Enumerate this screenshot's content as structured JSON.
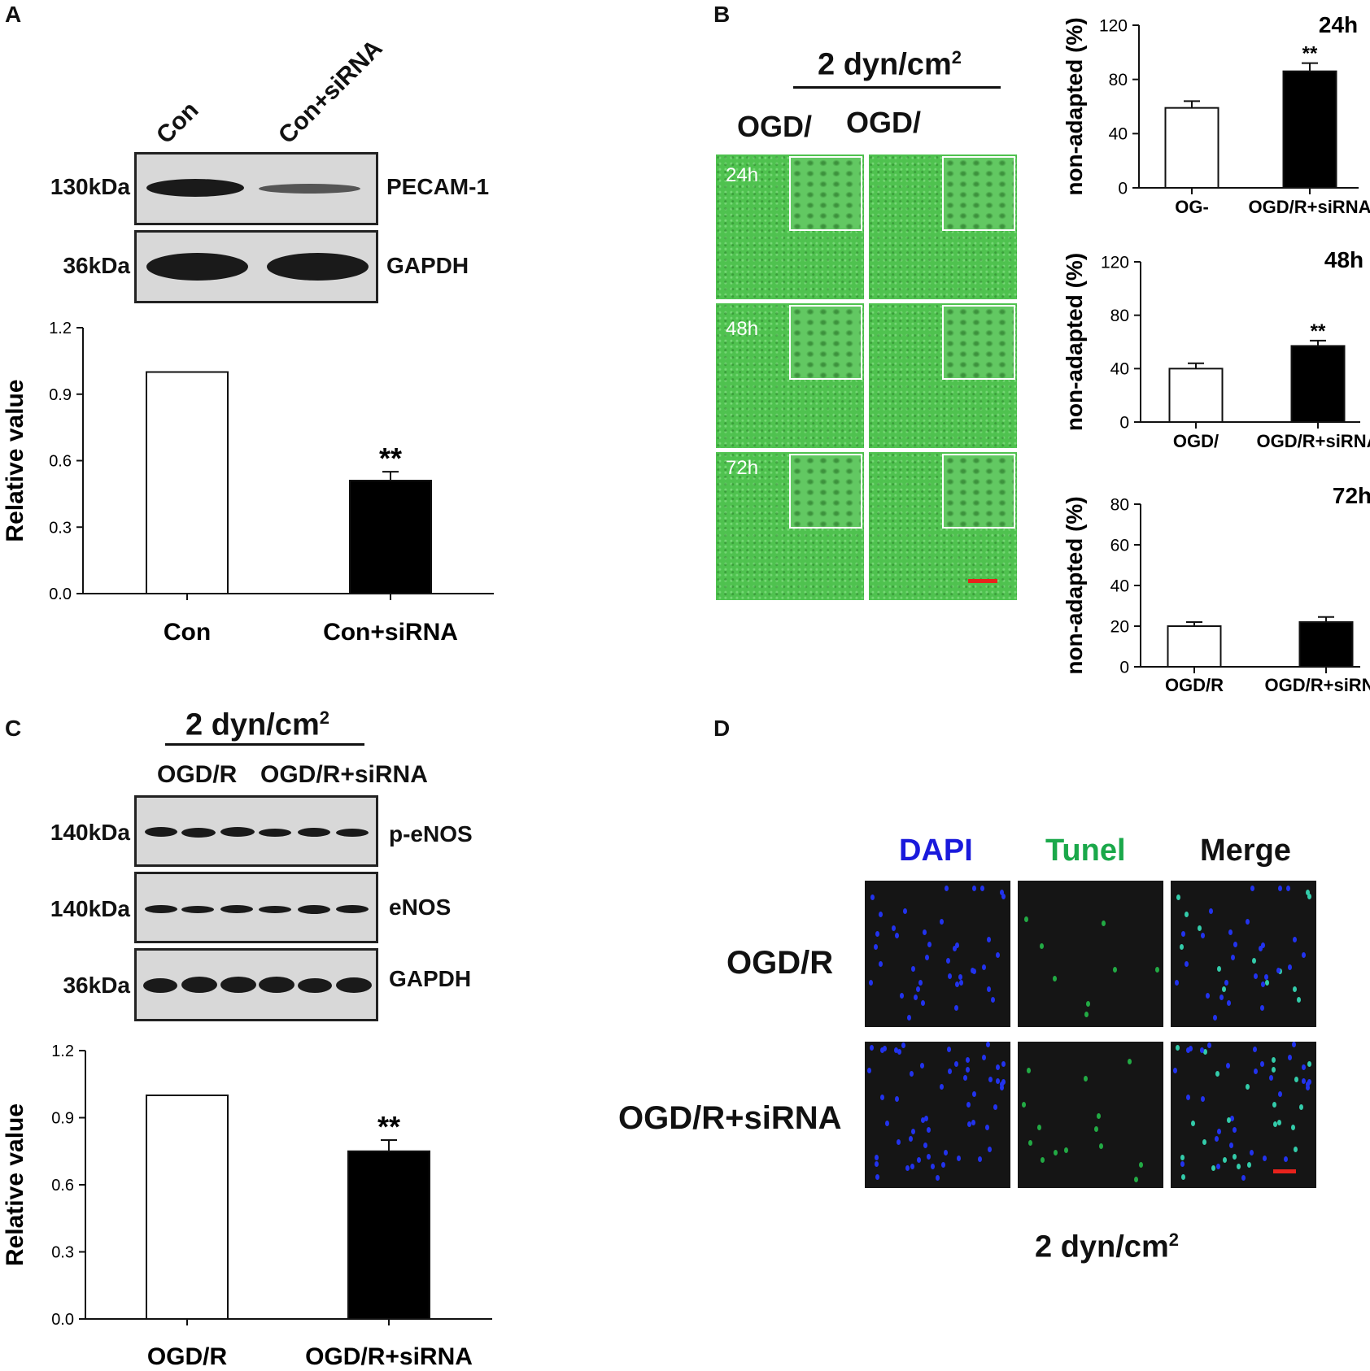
{
  "panel_A": {
    "letter": "A",
    "lanes": [
      "Con",
      "Con+siRNA"
    ],
    "blots": [
      {
        "mw": "130kDa",
        "protein": "PECAM-1"
      },
      {
        "mw": "36kDa",
        "protein": "GAPDH"
      }
    ]
  },
  "panel_B": {
    "letter": "B",
    "shear": "2 dyn/cm",
    "shear_sup": "2",
    "col_labels": [
      "OGD/",
      "OGD/"
    ],
    "time_labels": [
      "24h",
      "48h",
      "72h"
    ]
  },
  "panel_C": {
    "letter": "C",
    "shear": "2 dyn/cm",
    "shear_sup": "2",
    "groups": [
      "OGD/R",
      "OGD/R+siRNA"
    ],
    "blots": [
      {
        "mw": "140kDa",
        "protein": "p-eNOS"
      },
      {
        "mw": "140kDa",
        "protein": "eNOS"
      },
      {
        "mw": "36kDa",
        "protein": "GAPDH"
      }
    ]
  },
  "panel_D": {
    "letter": "D",
    "channels": [
      "DAPI",
      "Tunel",
      "Merge"
    ],
    "channel_colors": [
      "#1a1adc",
      "#1aa84a",
      "#111111"
    ],
    "rows": [
      "OGD/R",
      "OGD/R+siRNA"
    ],
    "shear": "2 dyn/cm",
    "shear_sup": "2"
  },
  "colors": {
    "scale_bar": "#e8221c",
    "micro_green": "#4fc24f"
  },
  "chart_data": [
    {
      "id": "A",
      "type": "bar",
      "categories": [
        "Con",
        "Con+siRNA"
      ],
      "values": [
        1.0,
        0.51
      ],
      "errors": [
        0,
        0.04
      ],
      "fills": [
        "white",
        "black"
      ],
      "significance": [
        "",
        "**"
      ],
      "ylabel": "Relative value",
      "ylim": [
        0,
        1.2
      ],
      "yticks": [
        "0.0",
        "0.3",
        "0.6",
        "0.9",
        "1.2"
      ]
    },
    {
      "id": "B24",
      "type": "bar",
      "categories": [
        "OG-",
        "OGD/R+siRNA"
      ],
      "values": [
        59,
        86
      ],
      "errors": [
        5,
        6
      ],
      "fills": [
        "white",
        "black"
      ],
      "significance": [
        "",
        "**"
      ],
      "ylabel": "non-adapted (%)",
      "title": "24h",
      "ylim": [
        0,
        120
      ],
      "yticks": [
        "0",
        "40",
        "80",
        "120"
      ]
    },
    {
      "id": "B48",
      "type": "bar",
      "categories": [
        "OGD/",
        "OGD/R+siRNA"
      ],
      "values": [
        40,
        57
      ],
      "errors": [
        4,
        4
      ],
      "fills": [
        "white",
        "black"
      ],
      "significance": [
        "",
        "**"
      ],
      "ylabel": "non-adapted (%)",
      "title": "48h",
      "ylim": [
        0,
        120
      ],
      "yticks": [
        "0",
        "40",
        "80",
        "120"
      ]
    },
    {
      "id": "B72",
      "type": "bar",
      "categories": [
        "OGD/R",
        "OGD/R+siRNA"
      ],
      "values": [
        20,
        22
      ],
      "errors": [
        2,
        2.5
      ],
      "fills": [
        "white",
        "black"
      ],
      "significance": [
        "",
        ""
      ],
      "ylabel": "non-adapted (%)",
      "title": "72h",
      "ylim": [
        0,
        80
      ],
      "yticks": [
        "0",
        "20",
        "40",
        "60",
        "80"
      ]
    },
    {
      "id": "C",
      "type": "bar",
      "categories": [
        "OGD/R",
        "OGD/R+siRNA"
      ],
      "values": [
        1.0,
        0.75
      ],
      "errors": [
        0,
        0.05
      ],
      "fills": [
        "white",
        "black"
      ],
      "significance": [
        "",
        "**"
      ],
      "ylabel": "Relative value",
      "ylim": [
        0,
        1.2
      ],
      "yticks": [
        "0.0",
        "0.3",
        "0.6",
        "0.9",
        "1.2"
      ]
    }
  ]
}
